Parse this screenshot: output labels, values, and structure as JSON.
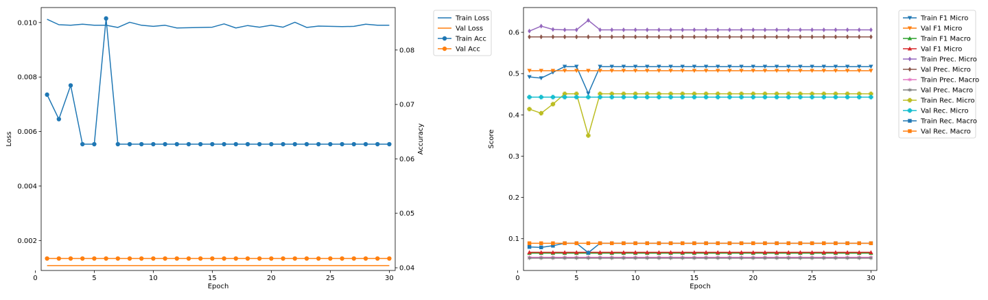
{
  "chart_data": [
    {
      "type": "line",
      "xlabel": "Epoch",
      "ylabel": "Loss",
      "ylabel_right": "Accuracy",
      "x": [
        1,
        2,
        3,
        4,
        5,
        6,
        7,
        8,
        9,
        10,
        11,
        12,
        13,
        14,
        15,
        16,
        17,
        18,
        19,
        20,
        21,
        22,
        23,
        24,
        25,
        26,
        27,
        28,
        29,
        30
      ],
      "xlim": [
        0.5,
        30.5
      ],
      "ylim": [
        0.0009,
        0.01055
      ],
      "ylim_right": [
        0.0395,
        0.0878
      ],
      "xticks": [
        0,
        5,
        10,
        15,
        20,
        25,
        30
      ],
      "yticks": [
        0.002,
        0.004,
        0.006,
        0.008,
        0.01
      ],
      "yticks_right": [
        0.04,
        0.05,
        0.06,
        0.07,
        0.08
      ],
      "grid": false,
      "legend_position": "outside-top-right",
      "series": [
        {
          "name": "Train Loss",
          "axis": "left",
          "color": "#1f77b4",
          "marker": "none",
          "values": [
            0.01012,
            0.00992,
            0.0099,
            0.00994,
            0.0099,
            0.0099,
            0.00982,
            0.01001,
            0.0099,
            0.00986,
            0.0099,
            0.0098,
            0.00981,
            0.00982,
            0.00983,
            0.00995,
            0.0098,
            0.00989,
            0.00983,
            0.0099,
            0.00983,
            0.01001,
            0.00982,
            0.00987,
            0.00986,
            0.00985,
            0.00986,
            0.00994,
            0.0099,
            0.0099
          ]
        },
        {
          "name": "Val Loss",
          "axis": "left",
          "color": "#ff7f0e",
          "marker": "none",
          "values": [
            0.00108,
            0.00108,
            0.00108,
            0.00108,
            0.00108,
            0.00108,
            0.00108,
            0.00108,
            0.00108,
            0.00108,
            0.00108,
            0.00108,
            0.00108,
            0.00108,
            0.00108,
            0.00108,
            0.00108,
            0.00108,
            0.00108,
            0.00108,
            0.00108,
            0.00108,
            0.00108,
            0.00108,
            0.00108,
            0.00108,
            0.00108,
            0.00108,
            0.00108,
            0.00108
          ]
        },
        {
          "name": "Train Acc",
          "axis": "right",
          "color": "#1f77b4",
          "marker": "circle",
          "values": [
            0.0718,
            0.0673,
            0.0735,
            0.0627,
            0.0627,
            0.0858,
            0.0627,
            0.0627,
            0.0627,
            0.0627,
            0.0627,
            0.0627,
            0.0627,
            0.0627,
            0.0627,
            0.0627,
            0.0627,
            0.0627,
            0.0627,
            0.0627,
            0.0627,
            0.0627,
            0.0627,
            0.0627,
            0.0627,
            0.0627,
            0.0627,
            0.0627,
            0.0627,
            0.0627
          ]
        },
        {
          "name": "Val Acc",
          "axis": "right",
          "color": "#ff7f0e",
          "marker": "circle",
          "values": [
            0.0417,
            0.0417,
            0.0417,
            0.0417,
            0.0417,
            0.0417,
            0.0417,
            0.0417,
            0.0417,
            0.0417,
            0.0417,
            0.0417,
            0.0417,
            0.0417,
            0.0417,
            0.0417,
            0.0417,
            0.0417,
            0.0417,
            0.0417,
            0.0417,
            0.0417,
            0.0417,
            0.0417,
            0.0417,
            0.0417,
            0.0417,
            0.0417,
            0.0417,
            0.0417
          ]
        }
      ]
    },
    {
      "type": "line",
      "xlabel": "Epoch",
      "ylabel": "Score",
      "x": [
        1,
        2,
        3,
        4,
        5,
        6,
        7,
        8,
        9,
        10,
        11,
        12,
        13,
        14,
        15,
        16,
        17,
        18,
        19,
        20,
        21,
        22,
        23,
        24,
        25,
        26,
        27,
        28,
        29,
        30
      ],
      "xlim": [
        0.5,
        30.5
      ],
      "ylim": [
        0.023,
        0.66
      ],
      "xticks": [
        0,
        5,
        10,
        15,
        20,
        25,
        30
      ],
      "yticks": [
        0.1,
        0.2,
        0.3,
        0.4,
        0.5,
        0.6
      ],
      "grid": false,
      "legend_position": "outside-top-right",
      "series": [
        {
          "name": "Train F1 Micro",
          "color": "#1f77b4",
          "marker": "triangle-down",
          "values": [
            0.492,
            0.489,
            0.503,
            0.517,
            0.517,
            0.452,
            0.517,
            0.517,
            0.517,
            0.517,
            0.517,
            0.517,
            0.517,
            0.517,
            0.517,
            0.517,
            0.517,
            0.517,
            0.517,
            0.517,
            0.517,
            0.517,
            0.517,
            0.517,
            0.517,
            0.517,
            0.517,
            0.517,
            0.517,
            0.517
          ]
        },
        {
          "name": "Val F1 Micro",
          "color": "#ff7f0e",
          "marker": "triangle-down",
          "values": [
            0.507,
            0.507,
            0.507,
            0.507,
            0.507,
            0.507,
            0.507,
            0.507,
            0.507,
            0.507,
            0.507,
            0.507,
            0.507,
            0.507,
            0.507,
            0.507,
            0.507,
            0.507,
            0.507,
            0.507,
            0.507,
            0.507,
            0.507,
            0.507,
            0.507,
            0.507,
            0.507,
            0.507,
            0.507,
            0.507
          ]
        },
        {
          "name": "Train F1 Macro",
          "color": "#2ca02c",
          "marker": "triangle-up",
          "values": [
            0.065,
            0.065,
            0.065,
            0.065,
            0.065,
            0.065,
            0.065,
            0.065,
            0.065,
            0.065,
            0.065,
            0.065,
            0.065,
            0.065,
            0.065,
            0.065,
            0.065,
            0.065,
            0.065,
            0.065,
            0.065,
            0.065,
            0.065,
            0.065,
            0.065,
            0.065,
            0.065,
            0.065,
            0.065,
            0.065
          ]
        },
        {
          "name": "Val F1 Micro",
          "color": "#d62728",
          "marker": "triangle-up",
          "values": [
            0.067,
            0.067,
            0.067,
            0.067,
            0.067,
            0.067,
            0.067,
            0.067,
            0.067,
            0.067,
            0.067,
            0.067,
            0.067,
            0.067,
            0.067,
            0.067,
            0.067,
            0.067,
            0.067,
            0.067,
            0.067,
            0.067,
            0.067,
            0.067,
            0.067,
            0.067,
            0.067,
            0.067,
            0.067,
            0.067
          ]
        },
        {
          "name": "Train Prec. Micro",
          "color": "#9467bd",
          "marker": "diamond",
          "values": [
            0.603,
            0.615,
            0.607,
            0.606,
            0.606,
            0.629,
            0.606,
            0.606,
            0.606,
            0.606,
            0.606,
            0.606,
            0.606,
            0.606,
            0.606,
            0.606,
            0.606,
            0.606,
            0.606,
            0.606,
            0.606,
            0.606,
            0.606,
            0.606,
            0.606,
            0.606,
            0.606,
            0.606,
            0.606,
            0.606
          ]
        },
        {
          "name": "Val Prec. Micro",
          "color": "#8c564b",
          "marker": "diamond",
          "values": [
            0.589,
            0.589,
            0.589,
            0.589,
            0.589,
            0.589,
            0.589,
            0.589,
            0.589,
            0.589,
            0.589,
            0.589,
            0.589,
            0.589,
            0.589,
            0.589,
            0.589,
            0.589,
            0.589,
            0.589,
            0.589,
            0.589,
            0.589,
            0.589,
            0.589,
            0.589,
            0.589,
            0.589,
            0.589,
            0.589
          ]
        },
        {
          "name": "Train Prec. Macro",
          "color": "#e377c2",
          "marker": "star",
          "values": [
            0.055,
            0.055,
            0.055,
            0.055,
            0.055,
            0.055,
            0.055,
            0.055,
            0.055,
            0.055,
            0.055,
            0.055,
            0.055,
            0.055,
            0.055,
            0.055,
            0.055,
            0.055,
            0.055,
            0.055,
            0.055,
            0.055,
            0.055,
            0.055,
            0.055,
            0.055,
            0.055,
            0.055,
            0.055,
            0.055
          ]
        },
        {
          "name": "Val Prec. Macro",
          "color": "#7f7f7f",
          "marker": "star",
          "values": [
            0.053,
            0.053,
            0.053,
            0.053,
            0.053,
            0.053,
            0.053,
            0.053,
            0.053,
            0.053,
            0.053,
            0.053,
            0.053,
            0.053,
            0.053,
            0.053,
            0.053,
            0.053,
            0.053,
            0.053,
            0.053,
            0.053,
            0.053,
            0.053,
            0.053,
            0.053,
            0.053,
            0.053,
            0.053,
            0.053
          ]
        },
        {
          "name": "Train Rec. Micro",
          "color": "#bcbd22",
          "marker": "plus",
          "values": [
            0.414,
            0.404,
            0.426,
            0.451,
            0.451,
            0.35,
            0.451,
            0.451,
            0.451,
            0.451,
            0.451,
            0.451,
            0.451,
            0.451,
            0.451,
            0.451,
            0.451,
            0.451,
            0.451,
            0.451,
            0.451,
            0.451,
            0.451,
            0.451,
            0.451,
            0.451,
            0.451,
            0.451,
            0.451,
            0.451
          ]
        },
        {
          "name": "Val Rec. Micro",
          "color": "#17becf",
          "marker": "plus",
          "values": [
            0.443,
            0.443,
            0.443,
            0.443,
            0.443,
            0.443,
            0.443,
            0.443,
            0.443,
            0.443,
            0.443,
            0.443,
            0.443,
            0.443,
            0.443,
            0.443,
            0.443,
            0.443,
            0.443,
            0.443,
            0.443,
            0.443,
            0.443,
            0.443,
            0.443,
            0.443,
            0.443,
            0.443,
            0.443,
            0.443
          ]
        },
        {
          "name": "Train Rec. Macro",
          "color": "#1f77b4",
          "marker": "square",
          "values": [
            0.08,
            0.079,
            0.083,
            0.089,
            0.089,
            0.066,
            0.089,
            0.089,
            0.089,
            0.089,
            0.089,
            0.089,
            0.089,
            0.089,
            0.089,
            0.089,
            0.089,
            0.089,
            0.089,
            0.089,
            0.089,
            0.089,
            0.089,
            0.089,
            0.089,
            0.089,
            0.089,
            0.089,
            0.089,
            0.089
          ]
        },
        {
          "name": "Val Rec. Macro",
          "color": "#ff7f0e",
          "marker": "square",
          "values": [
            0.089,
            0.089,
            0.089,
            0.089,
            0.089,
            0.089,
            0.089,
            0.089,
            0.089,
            0.089,
            0.089,
            0.089,
            0.089,
            0.089,
            0.089,
            0.089,
            0.089,
            0.089,
            0.089,
            0.089,
            0.089,
            0.089,
            0.089,
            0.089,
            0.089,
            0.089,
            0.089,
            0.089,
            0.089,
            0.089
          ]
        }
      ]
    }
  ]
}
